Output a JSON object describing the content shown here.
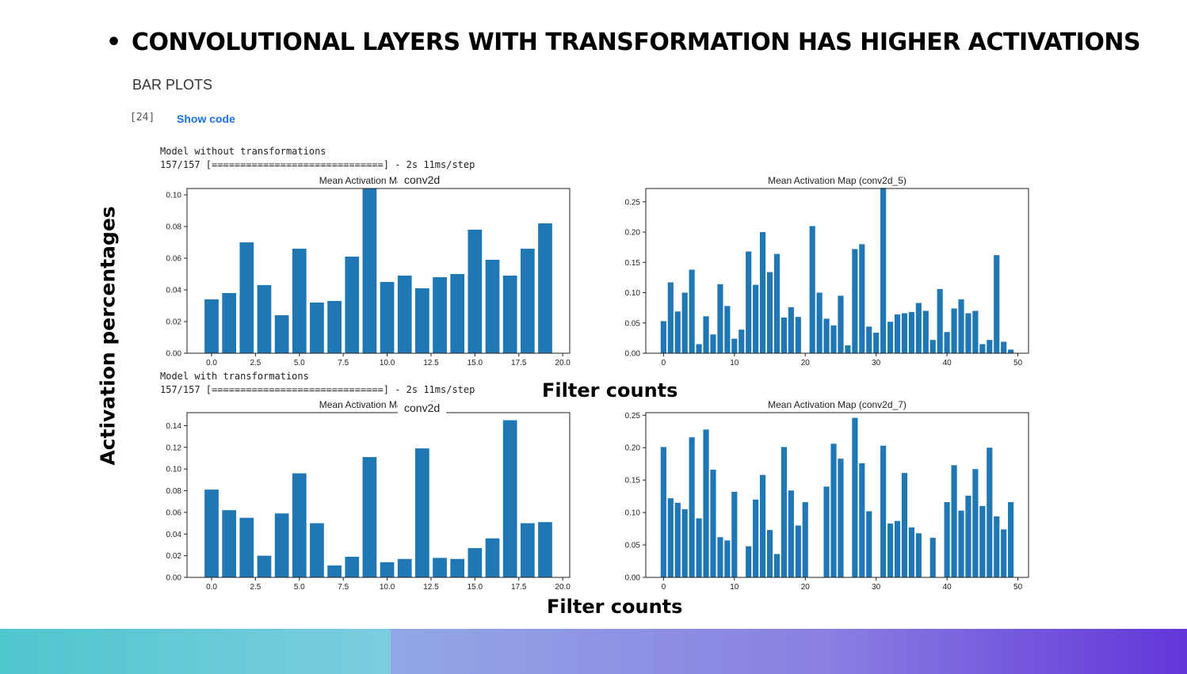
{
  "slide": {
    "bullet": "•",
    "title": "CONVOLUTIONAL LAYERS WITH TRANSFORMATION HAS HIGHER ACTIVATIONS",
    "section_title": "BAR PLOTS",
    "cell_number": "[24]",
    "show_code_label": "Show code",
    "y_caption": "Activation percentages",
    "x_caption_top": "Filter counts",
    "x_caption_bottom": "Filter counts"
  },
  "console": {
    "top_line1": "Model without transformations",
    "top_line2": "157/157 [==============================] - 2s 11ms/step",
    "bottom_line1": "Model with transformations",
    "bottom_line2": "157/157 [==============================] - 2s 11ms/step"
  },
  "overlays": {
    "top_left": "conv2d",
    "bottom_left": "conv2d"
  },
  "colors": {
    "bar": "#1f77b4",
    "footer_teal": "#4fc6cd",
    "footer_purple": "#6236d8"
  },
  "chart_data": [
    {
      "id": "without_left",
      "type": "bar",
      "title": "Mean Activation Map (m         _4)",
      "x": [
        0,
        1,
        2,
        3,
        4,
        5,
        6,
        7,
        8,
        9,
        10,
        11,
        12,
        13,
        14,
        15,
        16,
        17,
        18,
        19
      ],
      "values": [
        0.034,
        0.038,
        0.07,
        0.043,
        0.024,
        0.066,
        0.032,
        0.033,
        0.061,
        0.104,
        0.045,
        0.049,
        0.041,
        0.048,
        0.05,
        0.078,
        0.059,
        0.049,
        0.066,
        0.082
      ],
      "xlim": [
        -1.4,
        20.4
      ],
      "ylim": [
        0,
        0.104
      ],
      "xticks": [
        0,
        2.5,
        5,
        7.5,
        10,
        12.5,
        15,
        17.5,
        20
      ],
      "xtick_labels": [
        "0.0",
        "2.5",
        "5.0",
        "7.5",
        "10.0",
        "12.5",
        "15.0",
        "17.5",
        "20.0"
      ],
      "yticks": [
        0,
        0.02,
        0.04,
        0.06,
        0.08,
        0.1
      ],
      "ytick_labels": [
        "0.00",
        "0.02",
        "0.04",
        "0.06",
        "0.08",
        "0.10"
      ],
      "grid": false
    },
    {
      "id": "without_right",
      "type": "bar",
      "title": "Mean Activation Map (conv2d_5)",
      "x": [
        0,
        1,
        2,
        3,
        4,
        5,
        6,
        7,
        8,
        9,
        10,
        11,
        12,
        13,
        14,
        15,
        16,
        17,
        18,
        19,
        20,
        21,
        22,
        23,
        24,
        25,
        26,
        27,
        28,
        29,
        30,
        31,
        32,
        33,
        34,
        35,
        36,
        37,
        38,
        39,
        40,
        41,
        42,
        43,
        44,
        45,
        46,
        47,
        48,
        49
      ],
      "values": [
        0.053,
        0.117,
        0.069,
        0.1,
        0.138,
        0.015,
        0.061,
        0.031,
        0.114,
        0.078,
        0.024,
        0.039,
        0.168,
        0.113,
        0.2,
        0.134,
        0.164,
        0.059,
        0.076,
        0.06,
        0.0,
        0.21,
        0.1,
        0.057,
        0.046,
        0.095,
        0.013,
        0.172,
        0.18,
        0.044,
        0.034,
        0.273,
        0.052,
        0.064,
        0.066,
        0.068,
        0.083,
        0.07,
        0.022,
        0.106,
        0.035,
        0.074,
        0.089,
        0.066,
        0.07,
        0.015,
        0.022,
        0.162,
        0.019,
        0.006
      ],
      "xlim": [
        -2.5,
        51.5
      ],
      "ylim": [
        0,
        0.272
      ],
      "xticks": [
        0,
        10,
        20,
        30,
        40,
        50
      ],
      "xtick_labels": [
        "0",
        "10",
        "20",
        "30",
        "40",
        "50"
      ],
      "yticks": [
        0,
        0.05,
        0.1,
        0.15,
        0.2,
        0.25
      ],
      "ytick_labels": [
        "0.00",
        "0.05",
        "0.10",
        "0.15",
        "0.20",
        "0.25"
      ],
      "grid": false
    },
    {
      "id": "with_left",
      "type": "bar",
      "title": "Mean Activation Map (m         _6)",
      "x": [
        0,
        1,
        2,
        3,
        4,
        5,
        6,
        7,
        8,
        9,
        10,
        11,
        12,
        13,
        14,
        15,
        16,
        17,
        18,
        19
      ],
      "values": [
        0.081,
        0.062,
        0.055,
        0.02,
        0.059,
        0.096,
        0.05,
        0.011,
        0.019,
        0.111,
        0.014,
        0.017,
        0.119,
        0.018,
        0.017,
        0.027,
        0.036,
        0.145,
        0.05,
        0.051
      ],
      "xlim": [
        -1.4,
        20.4
      ],
      "ylim": [
        0,
        0.152
      ],
      "xticks": [
        0,
        2.5,
        5,
        7.5,
        10,
        12.5,
        15,
        17.5,
        20
      ],
      "xtick_labels": [
        "0.0",
        "2.5",
        "5.0",
        "7.5",
        "10.0",
        "12.5",
        "15.0",
        "17.5",
        "20.0"
      ],
      "yticks": [
        0,
        0.02,
        0.04,
        0.06,
        0.08,
        0.1,
        0.12,
        0.14
      ],
      "ytick_labels": [
        "0.00",
        "0.02",
        "0.04",
        "0.06",
        "0.08",
        "0.10",
        "0.12",
        "0.14"
      ],
      "grid": false
    },
    {
      "id": "with_right",
      "type": "bar",
      "title": "Mean Activation Map (conv2d_7)",
      "x": [
        0,
        1,
        2,
        3,
        4,
        5,
        6,
        7,
        8,
        9,
        10,
        11,
        12,
        13,
        14,
        15,
        16,
        17,
        18,
        19,
        20,
        21,
        22,
        23,
        24,
        25,
        26,
        27,
        28,
        29,
        30,
        31,
        32,
        33,
        34,
        35,
        36,
        37,
        38,
        39,
        40,
        41,
        42,
        43,
        44,
        45,
        46,
        47,
        48,
        49
      ],
      "values": [
        0.201,
        0.122,
        0.115,
        0.105,
        0.216,
        0.091,
        0.228,
        0.166,
        0.062,
        0.057,
        0.132,
        0.0,
        0.048,
        0.12,
        0.158,
        0.073,
        0.036,
        0.201,
        0.134,
        0.08,
        0.116,
        0.0,
        0.0,
        0.14,
        0.206,
        0.183,
        0.0,
        0.246,
        0.176,
        0.102,
        0.0,
        0.203,
        0.083,
        0.087,
        0.161,
        0.077,
        0.068,
        0.0,
        0.061,
        0.0,
        0.116,
        0.173,
        0.103,
        0.126,
        0.167,
        0.11,
        0.2,
        0.094,
        0.074,
        0.116
      ],
      "xlim": [
        -2.5,
        51.5
      ],
      "ylim": [
        0,
        0.254
      ],
      "xticks": [
        0,
        10,
        20,
        30,
        40,
        50
      ],
      "xtick_labels": [
        "0",
        "10",
        "20",
        "30",
        "40",
        "50"
      ],
      "yticks": [
        0,
        0.05,
        0.1,
        0.15,
        0.2,
        0.25
      ],
      "ytick_labels": [
        "0.00",
        "0.05",
        "0.10",
        "0.15",
        "0.20",
        "0.25"
      ],
      "grid": false
    }
  ]
}
